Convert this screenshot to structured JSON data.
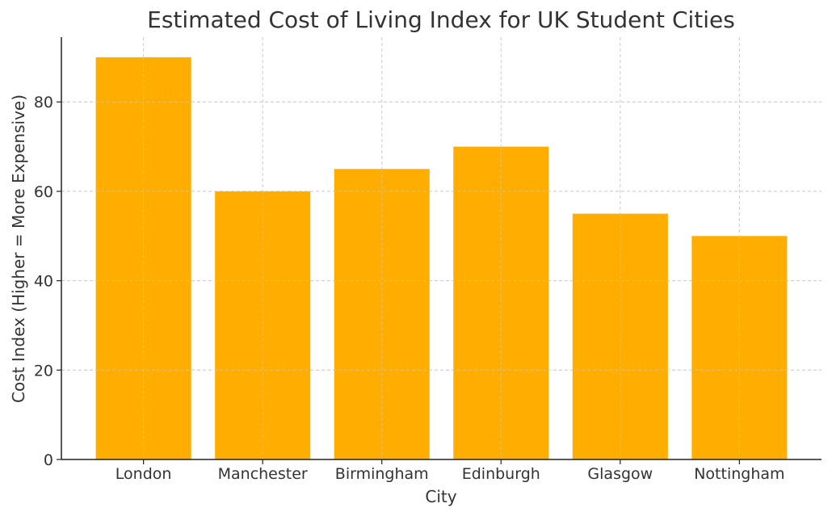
{
  "chart_data": {
    "type": "bar",
    "title": "Estimated Cost of Living Index for UK Student Cities",
    "xlabel": "City",
    "ylabel": "Cost Index (Higher = More Expensive)",
    "categories": [
      "London",
      "Manchester",
      "Birmingham",
      "Edinburgh",
      "Glasgow",
      "Nottingham"
    ],
    "values": [
      90,
      60,
      65,
      70,
      55,
      50
    ],
    "ylim": [
      0,
      94.5
    ],
    "yticks": [
      0,
      20,
      40,
      60,
      80
    ],
    "ytick_labels": [
      "0",
      "20",
      "40",
      "60",
      "80"
    ],
    "grid": true,
    "bar_color": "#FFAE00"
  }
}
